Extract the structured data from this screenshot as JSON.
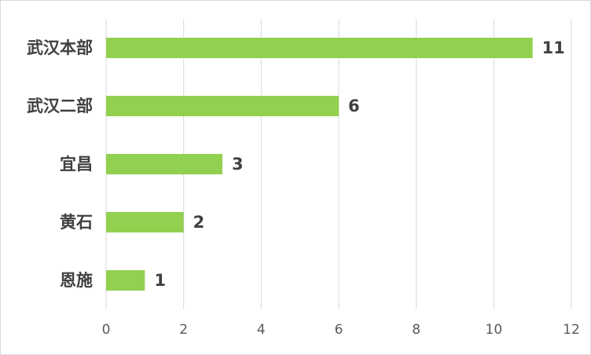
{
  "chart_data": {
    "type": "bar",
    "orientation": "horizontal",
    "categories": [
      "武汉本部",
      "武汉二部",
      "宜昌",
      "黄石",
      "恩施"
    ],
    "values": [
      11,
      6,
      3,
      2,
      1
    ],
    "color": "#92d050",
    "xlim": [
      0,
      12
    ],
    "xticks": [
      0,
      2,
      4,
      6,
      8,
      10,
      12
    ],
    "grid": true
  }
}
